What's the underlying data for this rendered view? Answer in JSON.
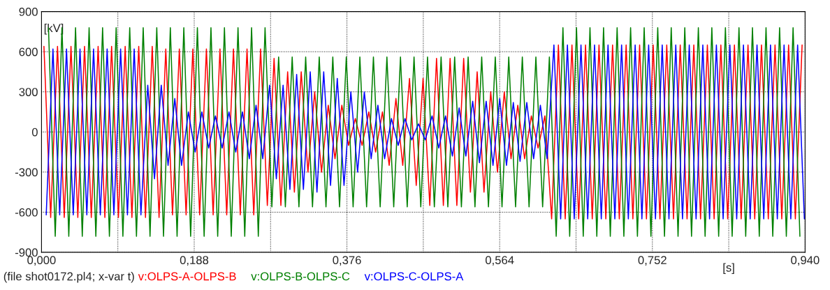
{
  "chart_data": {
    "type": "line",
    "xlim": [
      0,
      0.94
    ],
    "ylim": [
      -900,
      900
    ],
    "xticks": [
      {
        "value": 0,
        "label": "0,000"
      },
      {
        "value": 0.094,
        "label": null
      },
      {
        "value": 0.188,
        "label": "0,188"
      },
      {
        "value": 0.282,
        "label": null
      },
      {
        "value": 0.376,
        "label": "0,376"
      },
      {
        "value": 0.47,
        "label": null
      },
      {
        "value": 0.564,
        "label": "0,564"
      },
      {
        "value": 0.658,
        "label": null
      },
      {
        "value": 0.752,
        "label": "0,752"
      },
      {
        "value": 0.846,
        "label": null
      },
      {
        "value": 0.94,
        "label": "0,940"
      }
    ],
    "yticks": [
      -900,
      -600,
      -300,
      0,
      300,
      600,
      900
    ],
    "xlabel": "[s]",
    "ylabel": "[kV]",
    "grid": true,
    "legend": "bottom",
    "line_style": "solid",
    "marker": "none",
    "annotations": [
      "(file shot0172.pl4; x-var t)"
    ],
    "series": [
      {
        "name": "v:OLPS-A-OLPS-B",
        "color": "#ff0000",
        "x": [
          0.003,
          0.0113,
          0.0197,
          0.028,
          0.0363,
          0.0447,
          0.053,
          0.0613,
          0.0697,
          0.078,
          0.0863,
          0.0947,
          0.103,
          0.1113,
          0.1197,
          0.128,
          0.1363,
          0.1447,
          0.153,
          0.1613,
          0.1697,
          0.178,
          0.1863,
          0.1947,
          0.203,
          0.2113,
          0.2197,
          0.228,
          0.2363,
          0.2447,
          0.253,
          0.2613,
          0.2697,
          0.278,
          0.2863,
          0.2947,
          0.303,
          0.3113,
          0.3197,
          0.328,
          0.3363,
          0.3447,
          0.353,
          0.3613,
          0.3697,
          0.378,
          0.3863,
          0.3947,
          0.403,
          0.4113,
          0.4197,
          0.428,
          0.4363,
          0.4447,
          0.453,
          0.4613,
          0.4697,
          0.478,
          0.4863,
          0.4947,
          0.503,
          0.5113,
          0.5197,
          0.528,
          0.5363,
          0.5447,
          0.553,
          0.5613,
          0.5697,
          0.578,
          0.5863,
          0.5947,
          0.603,
          0.6113,
          0.6197,
          0.628,
          0.6363,
          0.6447,
          0.653,
          0.6613,
          0.6697,
          0.678,
          0.6863,
          0.6947,
          0.703,
          0.7113,
          0.7197,
          0.728,
          0.7363,
          0.7447,
          0.753,
          0.7613,
          0.7697,
          0.778,
          0.7863,
          0.7947,
          0.803,
          0.8113,
          0.8197,
          0.828,
          0.8363,
          0.8447,
          0.853,
          0.8613,
          0.8697,
          0.878,
          0.8863,
          0.8947,
          0.903,
          0.9113,
          0.9197,
          0.928,
          0.9363
        ],
        "values": [
          640,
          -640,
          640,
          -640,
          640,
          -640,
          640,
          -640,
          640,
          -640,
          640,
          -640,
          640,
          -640,
          640,
          -640,
          640,
          -640,
          620,
          -620,
          620,
          -620,
          620,
          -620,
          620,
          -620,
          620,
          -620,
          620,
          -620,
          620,
          -620,
          620,
          -550,
          550,
          -550,
          450,
          -450,
          450,
          -300,
          300,
          -300,
          200,
          -200,
          200,
          -100,
          100,
          -100,
          150,
          -150,
          150,
          -250,
          250,
          -250,
          400,
          -400,
          400,
          -550,
          550,
          -550,
          550,
          -550,
          550,
          -450,
          450,
          -450,
          300,
          -300,
          300,
          -200,
          200,
          -200,
          120,
          -120,
          120,
          -650,
          650,
          -650,
          650,
          -650,
          650,
          -650,
          650,
          -650,
          650,
          -650,
          650,
          -650,
          650,
          -650,
          650,
          -650,
          650,
          -650,
          650,
          -650,
          650,
          -650,
          650,
          -650,
          650,
          -650,
          650,
          -650,
          650,
          -650,
          650,
          -650,
          650,
          -650,
          650,
          -650,
          650
        ]
      },
      {
        "name": "v:OLPS-B-OLPS-C",
        "color": "#008000",
        "x": [
          0.0086,
          0.0169,
          0.0252,
          0.0336,
          0.0419,
          0.0502,
          0.0586,
          0.0669,
          0.0752,
          0.0836,
          0.0919,
          0.1002,
          0.1086,
          0.1169,
          0.1252,
          0.1336,
          0.1419,
          0.1502,
          0.1586,
          0.1669,
          0.1752,
          0.1836,
          0.1919,
          0.2002,
          0.2086,
          0.2169,
          0.2252,
          0.2336,
          0.2419,
          0.2502,
          0.2586,
          0.2669,
          0.2752,
          0.2836,
          0.2919,
          0.3002,
          0.3086,
          0.3169,
          0.3252,
          0.3336,
          0.3419,
          0.3502,
          0.3586,
          0.3669,
          0.3752,
          0.3836,
          0.3919,
          0.4002,
          0.4086,
          0.4169,
          0.4252,
          0.4336,
          0.4419,
          0.4502,
          0.4586,
          0.4669,
          0.4752,
          0.4836,
          0.4919,
          0.5002,
          0.5086,
          0.5169,
          0.5252,
          0.5336,
          0.5419,
          0.5502,
          0.5586,
          0.5669,
          0.5752,
          0.5836,
          0.5919,
          0.6002,
          0.6086,
          0.6169,
          0.6252,
          0.6336,
          0.6419,
          0.6502,
          0.6586,
          0.6669,
          0.6752,
          0.6836,
          0.6919,
          0.7002,
          0.7086,
          0.7169,
          0.7252,
          0.7336,
          0.7419,
          0.7502,
          0.7586,
          0.7669,
          0.7752,
          0.7836,
          0.7919,
          0.8002,
          0.8086,
          0.8169,
          0.8252,
          0.8336,
          0.8419,
          0.8502,
          0.8586,
          0.8669,
          0.8752,
          0.8836,
          0.8919,
          0.9002,
          0.9086,
          0.9169,
          0.9252,
          0.9336
        ],
        "values": [
          780,
          -780,
          780,
          -780,
          780,
          -780,
          780,
          -780,
          780,
          -780,
          780,
          -780,
          780,
          -780,
          780,
          -780,
          780,
          -780,
          780,
          -780,
          780,
          -780,
          780,
          -780,
          780,
          -780,
          780,
          -780,
          780,
          -780,
          780,
          -780,
          780,
          -560,
          560,
          -560,
          560,
          -560,
          560,
          -560,
          560,
          -560,
          560,
          -560,
          560,
          -560,
          560,
          -560,
          560,
          -560,
          560,
          -560,
          560,
          -560,
          560,
          -560,
          560,
          -560,
          560,
          -560,
          560,
          -560,
          560,
          -560,
          560,
          -560,
          560,
          -560,
          560,
          -560,
          560,
          -560,
          560,
          -560,
          560,
          -780,
          780,
          -780,
          780,
          -780,
          780,
          -780,
          780,
          -780,
          780,
          -780,
          780,
          -780,
          780,
          -780,
          780,
          -780,
          780,
          -780,
          780,
          -780,
          780,
          -780,
          780,
          -780,
          780,
          -780,
          780,
          -780,
          780,
          -780,
          780,
          -780,
          780,
          -780,
          780,
          -780
        ]
      },
      {
        "name": "v:OLPS-C-OLPS-A",
        "color": "#0000ff",
        "x": [
          0.0058,
          0.0141,
          0.0224,
          0.0308,
          0.0391,
          0.0474,
          0.0558,
          0.0641,
          0.0724,
          0.0808,
          0.0891,
          0.0974,
          0.1058,
          0.1141,
          0.1224,
          0.1308,
          0.1391,
          0.1474,
          0.1558,
          0.1641,
          0.1724,
          0.1808,
          0.1891,
          0.1974,
          0.2058,
          0.2141,
          0.2224,
          0.2308,
          0.2391,
          0.2474,
          0.2558,
          0.2641,
          0.2724,
          0.2808,
          0.2891,
          0.2974,
          0.3058,
          0.3141,
          0.3224,
          0.3308,
          0.3391,
          0.3474,
          0.3558,
          0.3641,
          0.3724,
          0.3808,
          0.3891,
          0.3974,
          0.4058,
          0.4141,
          0.4224,
          0.4308,
          0.4391,
          0.4474,
          0.4558,
          0.4641,
          0.4724,
          0.4808,
          0.4891,
          0.4974,
          0.5058,
          0.5141,
          0.5224,
          0.5308,
          0.5391,
          0.5474,
          0.5558,
          0.5641,
          0.5724,
          0.5808,
          0.5891,
          0.5974,
          0.6058,
          0.6141,
          0.6224,
          0.6308,
          0.6391,
          0.6474,
          0.6558,
          0.6641,
          0.6724,
          0.6808,
          0.6891,
          0.6974,
          0.7058,
          0.7141,
          0.7224,
          0.7308,
          0.7391,
          0.7474,
          0.7558,
          0.7641,
          0.7724,
          0.7808,
          0.7891,
          0.7974,
          0.8058,
          0.8141,
          0.8224,
          0.8308,
          0.8391,
          0.8474,
          0.8558,
          0.8641,
          0.8724,
          0.8808,
          0.8891,
          0.8974,
          0.9058,
          0.9141,
          0.9224,
          0.9308,
          0.9391
        ],
        "values": [
          -620,
          620,
          -620,
          620,
          -620,
          620,
          -620,
          620,
          -620,
          620,
          -620,
          620,
          -620,
          620,
          -620,
          350,
          -350,
          350,
          -250,
          250,
          -250,
          150,
          -150,
          150,
          -120,
          120,
          -120,
          150,
          -150,
          150,
          -200,
          200,
          -200,
          350,
          -350,
          350,
          -430,
          430,
          -430,
          450,
          -450,
          450,
          -400,
          400,
          -400,
          300,
          -300,
          300,
          -200,
          200,
          -200,
          100,
          -100,
          100,
          -60,
          60,
          -60,
          120,
          -120,
          120,
          -180,
          180,
          -180,
          230,
          -230,
          230,
          -250,
          250,
          -250,
          220,
          -220,
          220,
          -200,
          200,
          -200,
          650,
          -650,
          650,
          -650,
          650,
          -650,
          650,
          -650,
          650,
          -650,
          650,
          -650,
          650,
          -650,
          650,
          -650,
          650,
          -650,
          650,
          -650,
          650,
          -650,
          650,
          -650,
          650,
          -650,
          650,
          -650,
          650,
          -650,
          650,
          -650,
          650,
          -650,
          650,
          -650,
          650,
          -650
        ]
      }
    ]
  }
}
